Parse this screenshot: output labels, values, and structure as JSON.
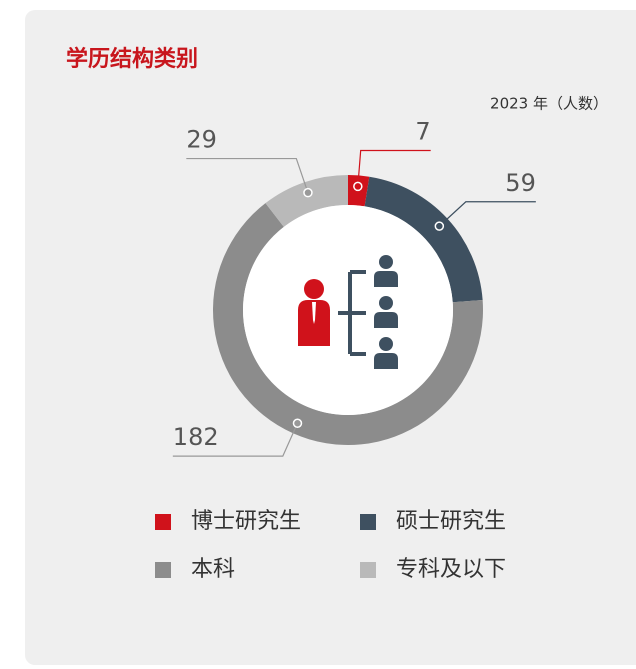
{
  "chart_data": {
    "type": "donut",
    "title": "学历结构类别",
    "subtitle": "2023 年（人数）",
    "categories": [
      "博士研究生",
      "硕士研究生",
      "本科",
      "专科及以下"
    ],
    "values": [
      7,
      59,
      182,
      29
    ],
    "colors": [
      "#d0121b",
      "#3e5060",
      "#8c8c8c",
      "#b9b9b9"
    ]
  }
}
